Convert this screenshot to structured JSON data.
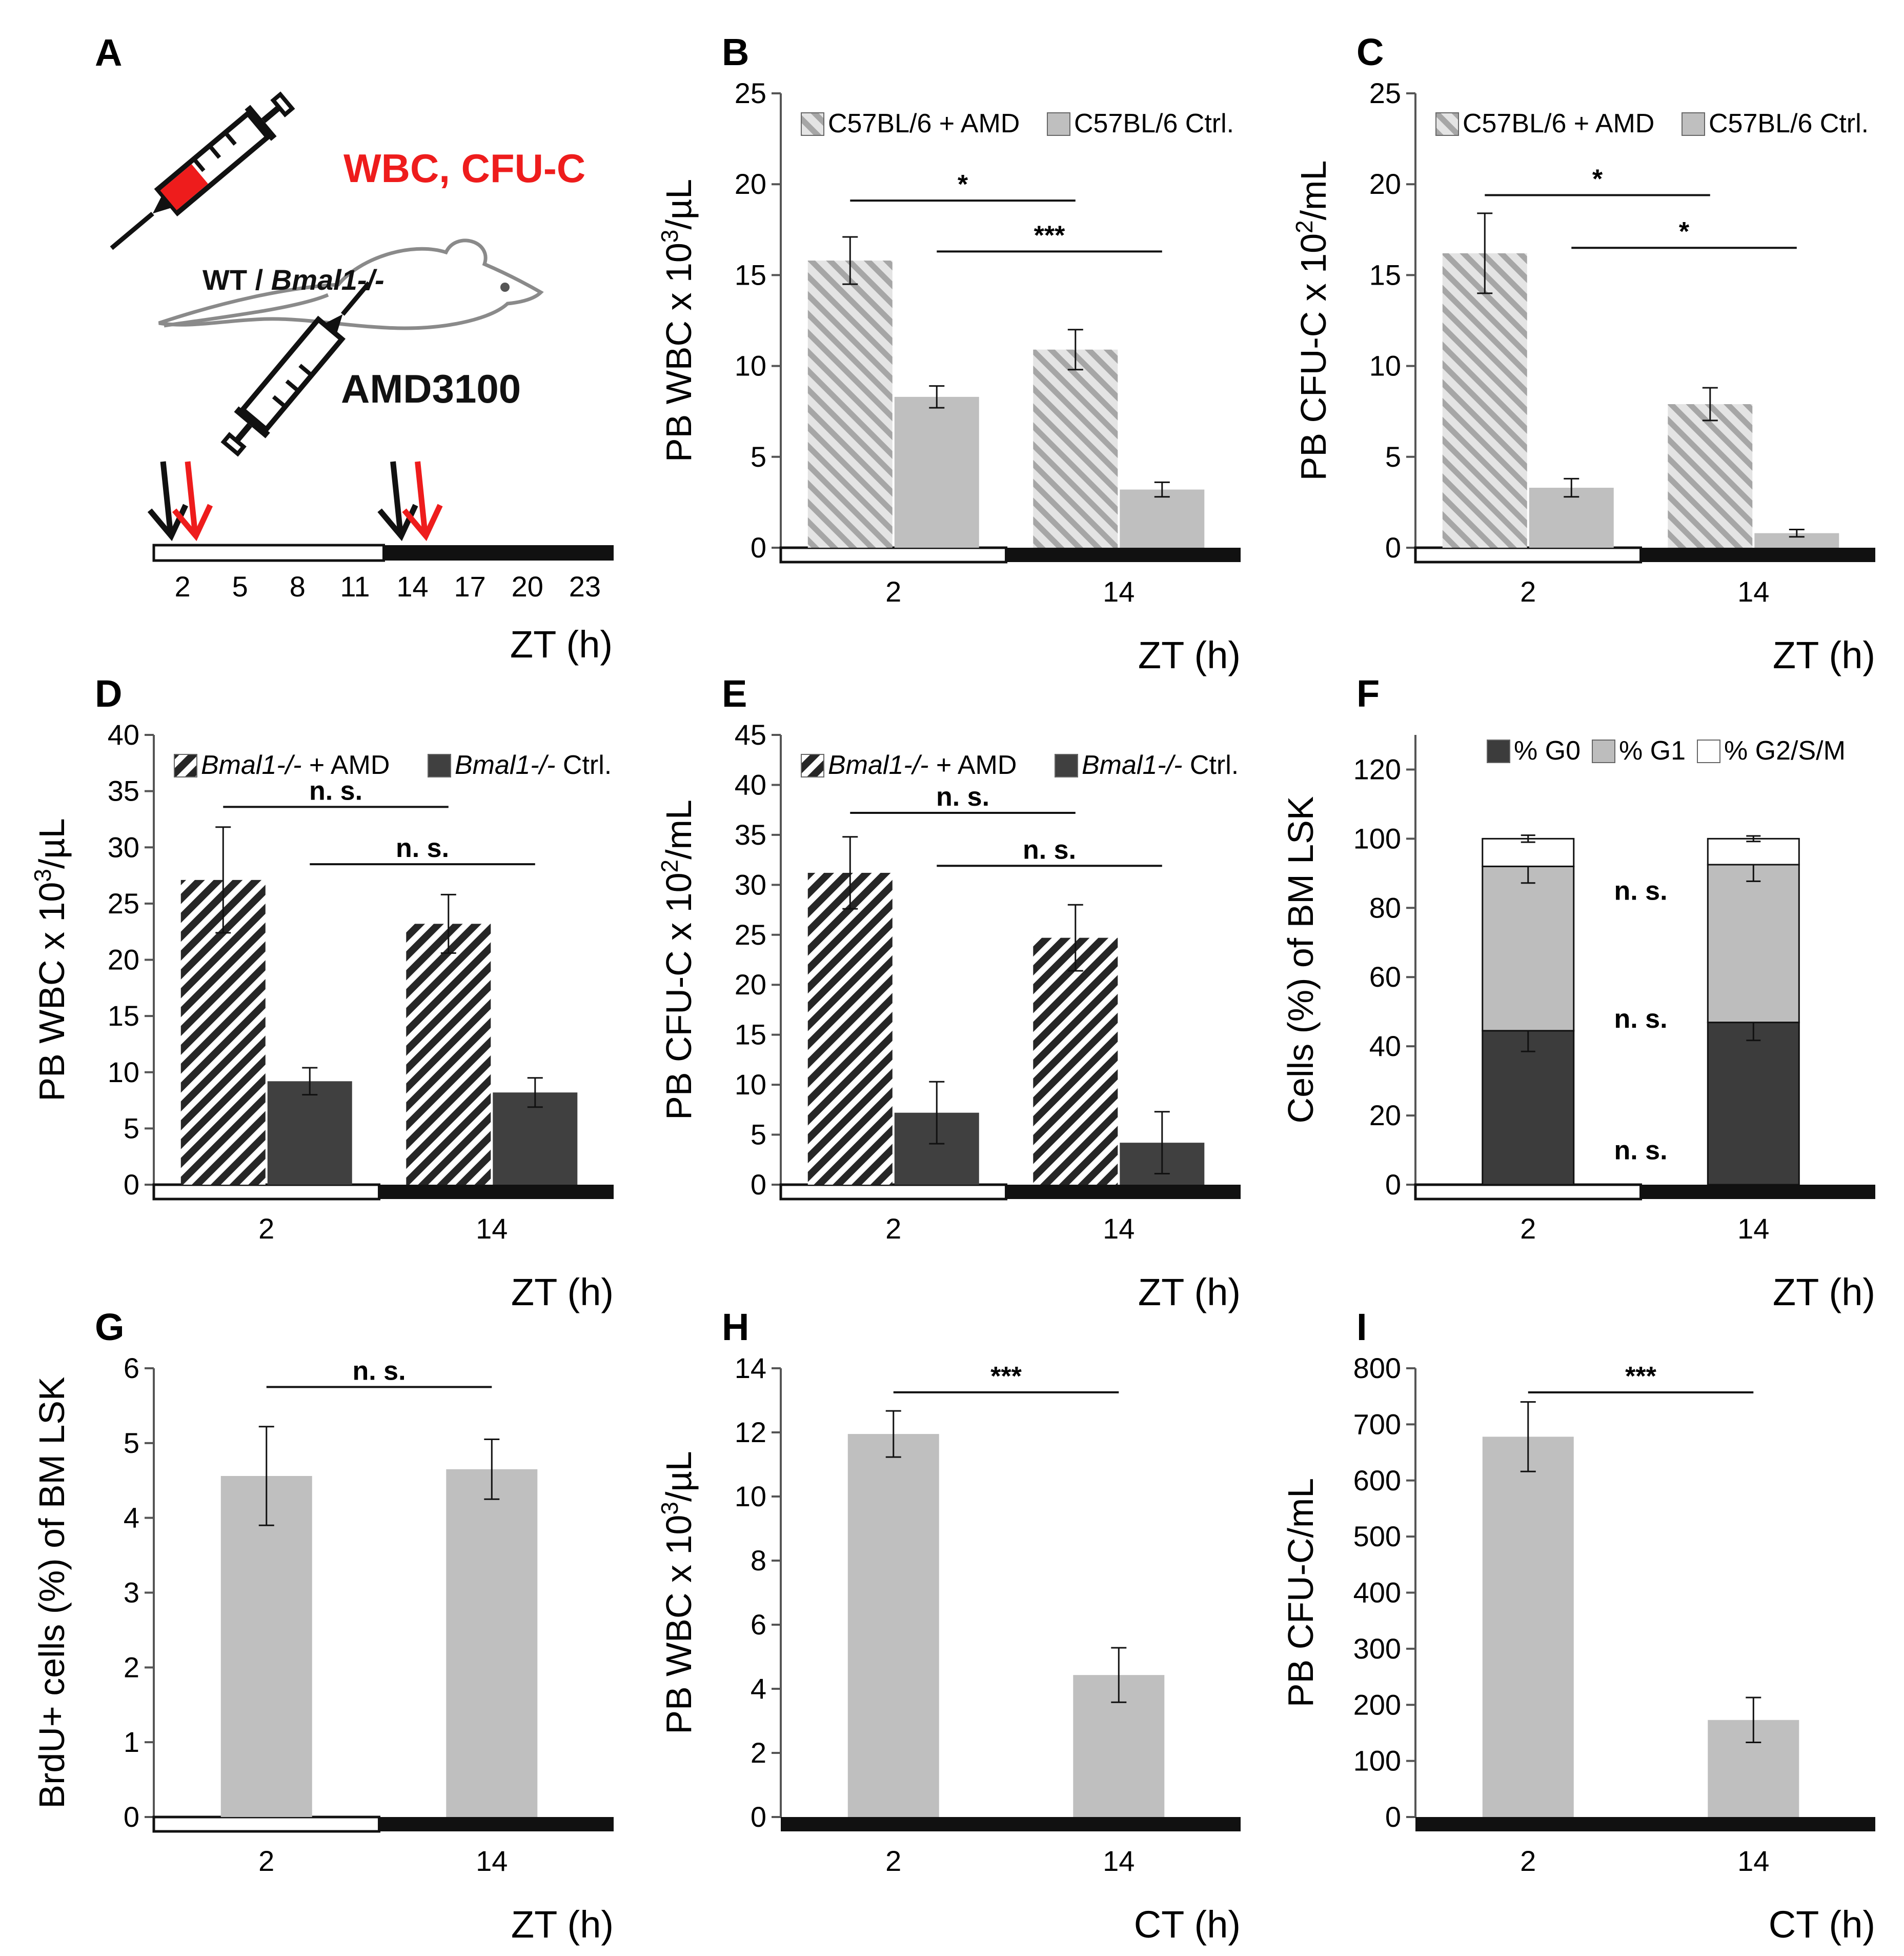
{
  "panel_A": {
    "letter": "A",
    "syringe_label_red": "WBC, CFU-C",
    "mouse_label_wt": "WT / ",
    "mouse_label_bmal": "Bmal1-/-",
    "drug_label": "AMD3100",
    "timeline_ticks": [
      "2",
      "5",
      "8",
      "11",
      "14",
      "17",
      "20",
      "23"
    ],
    "timeline_tick_values": [
      2,
      5,
      8,
      11,
      14,
      17,
      20,
      23
    ],
    "arrow_times": [
      2,
      14
    ],
    "timeline_range": [
      0.5,
      24.5
    ],
    "light_dark_split": 12.5,
    "xlabel": "ZT (h)",
    "colors": {
      "black_arrow": "#111111",
      "red_arrow": "#ee1c1c"
    }
  },
  "chart_data": [
    {
      "letter": "B",
      "type": "bar",
      "categories": [
        "2",
        "14"
      ],
      "series": [
        {
          "name": "C57BL/6 + AMD",
          "pattern": "light-hatch",
          "values": [
            15.8,
            10.9
          ],
          "errors": [
            1.3,
            1.1
          ]
        },
        {
          "name": "C57BL/6 Ctrl.",
          "pattern": "light-solid",
          "values": [
            8.3,
            3.2
          ],
          "errors": [
            0.6,
            0.4
          ]
        }
      ],
      "ylim": [
        0,
        25
      ],
      "yticks": [
        0,
        5,
        10,
        15,
        20,
        25
      ],
      "ylabel_main": "PB WBC x 10",
      "ylabel_sup": "3",
      "ylabel_tail": "/µL",
      "xlabel": "ZT (h)",
      "lightdark": "LD",
      "legend": "top",
      "significance": [
        {
          "label": "*",
          "from": [
            0,
            0
          ],
          "to": [
            1,
            0
          ],
          "y": 19.1
        },
        {
          "label": "***",
          "from": [
            0,
            1
          ],
          "to": [
            1,
            1
          ],
          "y": 16.3
        }
      ]
    },
    {
      "letter": "C",
      "type": "bar",
      "categories": [
        "2",
        "14"
      ],
      "series": [
        {
          "name": "C57BL/6 + AMD",
          "pattern": "light-hatch",
          "values": [
            16.2,
            7.9
          ],
          "errors": [
            2.2,
            0.9
          ]
        },
        {
          "name": "C57BL/6 Ctrl.",
          "pattern": "light-solid",
          "values": [
            3.3,
            0.8
          ],
          "errors": [
            0.5,
            0.2
          ]
        }
      ],
      "ylim": [
        0,
        25
      ],
      "yticks": [
        0,
        5,
        10,
        15,
        20,
        25
      ],
      "ylabel_main": "PB CFU-C x 10",
      "ylabel_sup": "2",
      "ylabel_tail": "/mL",
      "xlabel": "ZT (h)",
      "lightdark": "LD",
      "legend": "top",
      "significance": [
        {
          "label": "*",
          "from": [
            0,
            0
          ],
          "to": [
            1,
            0
          ],
          "y": 19.4
        },
        {
          "label": "*",
          "from": [
            0,
            1
          ],
          "to": [
            1,
            1
          ],
          "y": 16.5
        }
      ]
    },
    {
      "letter": "D",
      "type": "bar",
      "categories": [
        "2",
        "14"
      ],
      "series": [
        {
          "name": "Bmal1-/- + AMD",
          "name_italic": "Bmal1-/-",
          "name_rest": " + AMD",
          "pattern": "dark-hatch",
          "values": [
            27.1,
            23.2
          ],
          "errors": [
            4.7,
            2.6
          ]
        },
        {
          "name": "Bmal1-/- Ctrl.",
          "name_italic": "Bmal1-/-",
          "name_rest": " Ctrl.",
          "pattern": "dark-solid",
          "values": [
            9.2,
            8.2
          ],
          "errors": [
            1.2,
            1.3
          ]
        }
      ],
      "ylim": [
        0,
        40
      ],
      "yticks": [
        0,
        5,
        10,
        15,
        20,
        25,
        30,
        35,
        40
      ],
      "ylabel_main": "PB WBC x 10",
      "ylabel_sup": "3",
      "ylabel_tail": "/µL",
      "xlabel": "ZT (h)",
      "lightdark": "LD",
      "legend": "top",
      "significance": [
        {
          "label": "n. s.",
          "from": [
            0,
            0
          ],
          "to": [
            1,
            0
          ],
          "y": 33.6
        },
        {
          "label": "n. s.",
          "from": [
            0,
            1
          ],
          "to": [
            1,
            1
          ],
          "y": 28.5
        }
      ]
    },
    {
      "letter": "E",
      "type": "bar",
      "categories": [
        "2",
        "14"
      ],
      "series": [
        {
          "name": "Bmal1-/- + AMD",
          "name_italic": "Bmal1-/-",
          "name_rest": " + AMD",
          "pattern": "dark-hatch",
          "values": [
            31.2,
            24.7
          ],
          "errors": [
            3.6,
            3.3
          ]
        },
        {
          "name": "Bmal1-/- Ctrl.",
          "name_italic": "Bmal1-/-",
          "name_rest": " Ctrl.",
          "pattern": "dark-solid",
          "values": [
            7.2,
            4.2
          ],
          "errors": [
            3.1,
            3.1
          ]
        }
      ],
      "ylim": [
        0,
        45
      ],
      "yticks": [
        0,
        5,
        10,
        15,
        20,
        25,
        30,
        35,
        40,
        45
      ],
      "ylabel_main": "PB CFU-C x 10",
      "ylabel_sup": "2",
      "ylabel_tail": "/mL",
      "xlabel": "ZT (h)",
      "lightdark": "LD",
      "legend": "top",
      "significance": [
        {
          "label": "n. s.",
          "from": [
            0,
            0
          ],
          "to": [
            1,
            0
          ],
          "y": 37.2
        },
        {
          "label": "n. s.",
          "from": [
            0,
            1
          ],
          "to": [
            1,
            1
          ],
          "y": 31.9
        }
      ]
    },
    {
      "letter": "F",
      "type": "stacked-bar",
      "categories": [
        "2",
        "14"
      ],
      "series": [
        {
          "name": "% G0",
          "color": "#3c3c3c",
          "values": [
            44.5,
            46.9
          ],
          "errors": [
            6.0,
            5.2
          ]
        },
        {
          "name": "% G1",
          "color": "#bdbdbd",
          "values": [
            47.5,
            45.6
          ],
          "errors": [
            4.8,
            4.8
          ]
        },
        {
          "name": "% G2/S/M",
          "color": "#ffffff",
          "values": [
            8.0,
            7.5
          ],
          "errors": [
            1.0,
            0.8
          ]
        }
      ],
      "ylim": [
        0,
        130
      ],
      "yticks": [
        0,
        20,
        40,
        60,
        80,
        100,
        120
      ],
      "ylabel_main": "Cells (%) of BM LSK",
      "xlabel": "ZT (h)",
      "lightdark": "LD",
      "legend": "top",
      "annotations": [
        {
          "label": "n. s.",
          "y": 85
        },
        {
          "label": "n. s.",
          "y": 48
        },
        {
          "label": "n. s.",
          "y": 10
        }
      ]
    },
    {
      "letter": "G",
      "type": "bar",
      "categories": [
        "2",
        "14"
      ],
      "series": [
        {
          "name": "BrdU+ cells",
          "pattern": "light-solid",
          "values": [
            4.56,
            4.65
          ],
          "errors": [
            0.66,
            0.4
          ]
        }
      ],
      "ylim": [
        0,
        6
      ],
      "yticks": [
        0,
        1,
        2,
        3,
        4,
        5,
        6
      ],
      "ylabel_main": "BrdU+ cells (%) of BM LSK",
      "xlabel": "ZT (h)",
      "lightdark": "LD",
      "legend": "none",
      "significance": [
        {
          "label": "n. s.",
          "from": [
            0,
            0
          ],
          "to": [
            1,
            0
          ],
          "y": 5.75
        }
      ]
    },
    {
      "letter": "H",
      "type": "bar",
      "categories": [
        "2",
        "14"
      ],
      "series": [
        {
          "name": "PB WBC",
          "pattern": "light-solid",
          "values": [
            11.95,
            4.43
          ],
          "errors": [
            0.72,
            0.85
          ]
        }
      ],
      "ylim": [
        0,
        14
      ],
      "yticks": [
        0,
        2,
        4,
        6,
        8,
        10,
        12,
        14
      ],
      "ylabel_main": "PB WBC x 10",
      "ylabel_sup": "3",
      "ylabel_tail": "/µL",
      "xlabel": "CT (h)",
      "lightdark": "DD",
      "legend": "none",
      "significance": [
        {
          "label": "***",
          "from": [
            0,
            0
          ],
          "to": [
            1,
            0
          ],
          "y": 13.25
        }
      ]
    },
    {
      "letter": "I",
      "type": "bar",
      "categories": [
        "2",
        "14"
      ],
      "series": [
        {
          "name": "PB CFU-C",
          "pattern": "light-solid",
          "values": [
            678,
            173
          ],
          "errors": [
            62,
            40
          ]
        }
      ],
      "ylim": [
        0,
        800
      ],
      "yticks": [
        0,
        100,
        200,
        300,
        400,
        500,
        600,
        700,
        800
      ],
      "ylabel_main": "PB CFU-C/mL",
      "xlabel": "CT (h)",
      "lightdark": "DD",
      "legend": "none",
      "significance": [
        {
          "label": "***",
          "from": [
            0,
            0
          ],
          "to": [
            1,
            0
          ],
          "y": 757
        }
      ]
    }
  ]
}
